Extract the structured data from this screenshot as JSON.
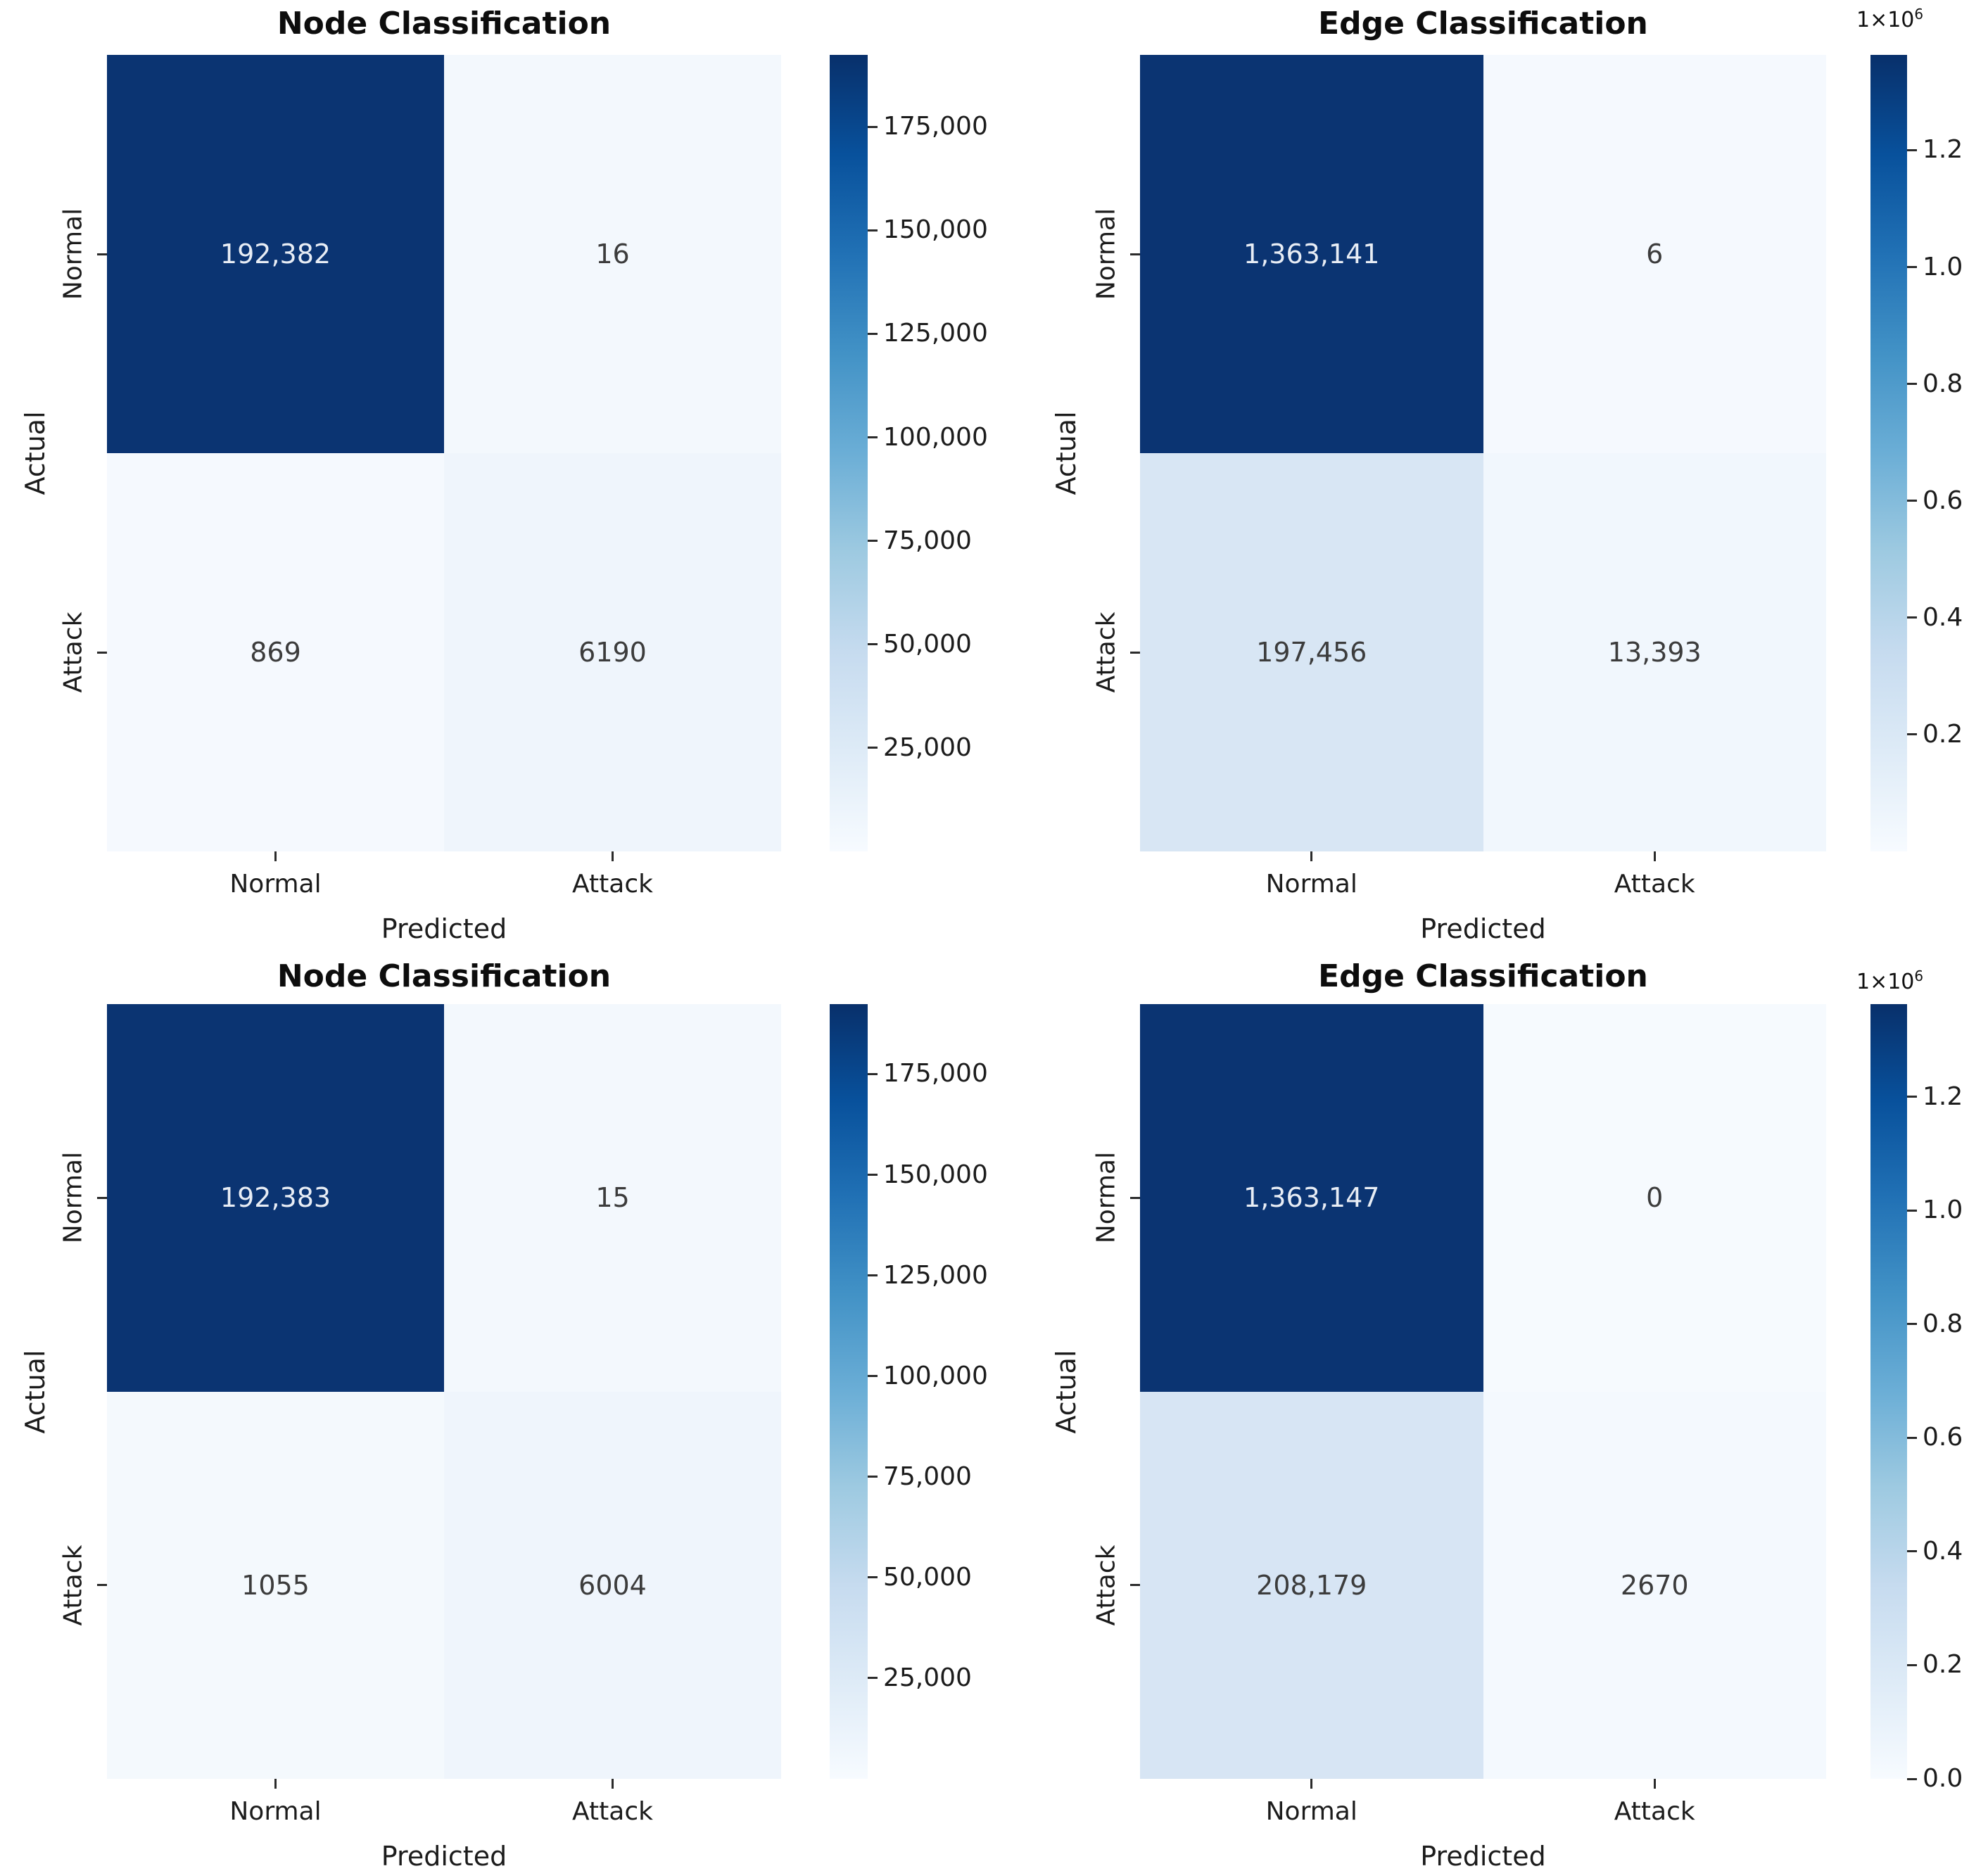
{
  "figure": {
    "background": "#ffffff",
    "heatmap_colormap": "Blues",
    "colormap_dark": "#0b3472",
    "colormap_light": "#f7fbff"
  },
  "chart_data": [
    {
      "type": "heatmap",
      "title": "Node Classification",
      "xlabel": "Predicted",
      "ylabel": "Actual",
      "x_categories": [
        "Normal",
        "Attack"
      ],
      "y_categories": [
        "Normal",
        "Attack"
      ],
      "values": [
        [
          192382,
          16
        ],
        [
          869,
          6190
        ]
      ],
      "cell_labels": [
        [
          "192,382",
          "16"
        ],
        [
          "869",
          "6190"
        ]
      ],
      "cell_colors": [
        [
          "#0b3472",
          "#f3f8fd"
        ],
        [
          "#f5f9fe",
          "#eff5fc"
        ]
      ],
      "cell_text_colors": [
        [
          "#e8edf5",
          "#3c3c3c"
        ],
        [
          "#3c3c3c",
          "#3c3c3c"
        ]
      ],
      "colorbar": {
        "vmin": 0,
        "vmax": 192382,
        "ticks": [
          {
            "value": 175000,
            "label": "175,000"
          },
          {
            "value": 150000,
            "label": "150,000"
          },
          {
            "value": 125000,
            "label": "125,000"
          },
          {
            "value": 100000,
            "label": "100,000"
          },
          {
            "value": 75000,
            "label": "75,000"
          },
          {
            "value": 50000,
            "label": "50,000"
          },
          {
            "value": 25000,
            "label": "25,000"
          }
        ],
        "offset_label": null
      }
    },
    {
      "type": "heatmap",
      "title": "Edge Classification",
      "xlabel": "Predicted",
      "ylabel": "Actual",
      "x_categories": [
        "Normal",
        "Attack"
      ],
      "y_categories": [
        "Normal",
        "Attack"
      ],
      "values": [
        [
          1363141,
          6
        ],
        [
          197456,
          13393
        ]
      ],
      "cell_labels": [
        [
          "1,363,141",
          "6"
        ],
        [
          "197,456",
          "13,393"
        ]
      ],
      "cell_colors": [
        [
          "#0b3472",
          "#f5f9fe"
        ],
        [
          "#d8e6f4",
          "#f1f7fd"
        ]
      ],
      "cell_text_colors": [
        [
          "#e8edf5",
          "#3c3c3c"
        ],
        [
          "#3c3c3c",
          "#3c3c3c"
        ]
      ],
      "colorbar": {
        "vmin": 0,
        "vmax": 1363141,
        "ticks": [
          {
            "value": 1200000,
            "label": "1.2"
          },
          {
            "value": 1000000,
            "label": "1.0"
          },
          {
            "value": 800000,
            "label": "0.8"
          },
          {
            "value": 600000,
            "label": "0.6"
          },
          {
            "value": 400000,
            "label": "0.4"
          },
          {
            "value": 200000,
            "label": "0.2"
          }
        ],
        "offset_label": {
          "base": "1×10",
          "exponent": "6"
        }
      }
    },
    {
      "type": "heatmap",
      "title": "Node Classification",
      "xlabel": "Predicted",
      "ylabel": "Actual",
      "x_categories": [
        "Normal",
        "Attack"
      ],
      "y_categories": [
        "Normal",
        "Attack"
      ],
      "values": [
        [
          192383,
          15
        ],
        [
          1055,
          6004
        ]
      ],
      "cell_labels": [
        [
          "192,383",
          "15"
        ],
        [
          "1055",
          "6004"
        ]
      ],
      "cell_colors": [
        [
          "#0b3472",
          "#f3f8fd"
        ],
        [
          "#f4f9fd",
          "#eff5fc"
        ]
      ],
      "cell_text_colors": [
        [
          "#e8edf5",
          "#3c3c3c"
        ],
        [
          "#3c3c3c",
          "#3c3c3c"
        ]
      ],
      "colorbar": {
        "vmin": 0,
        "vmax": 192383,
        "ticks": [
          {
            "value": 175000,
            "label": "175,000"
          },
          {
            "value": 150000,
            "label": "150,000"
          },
          {
            "value": 125000,
            "label": "125,000"
          },
          {
            "value": 100000,
            "label": "100,000"
          },
          {
            "value": 75000,
            "label": "75,000"
          },
          {
            "value": 50000,
            "label": "50,000"
          },
          {
            "value": 25000,
            "label": "25,000"
          }
        ],
        "offset_label": null
      }
    },
    {
      "type": "heatmap",
      "title": "Edge Classification",
      "xlabel": "Predicted",
      "ylabel": "Actual",
      "x_categories": [
        "Normal",
        "Attack"
      ],
      "y_categories": [
        "Normal",
        "Attack"
      ],
      "values": [
        [
          1363147,
          0
        ],
        [
          208179,
          2670
        ]
      ],
      "cell_labels": [
        [
          "1,363,147",
          "0"
        ],
        [
          "208,179",
          "2670"
        ]
      ],
      "cell_colors": [
        [
          "#0b3472",
          "#f6fafe"
        ],
        [
          "#d7e5f4",
          "#f4f9fe"
        ]
      ],
      "cell_text_colors": [
        [
          "#e8edf5",
          "#3c3c3c"
        ],
        [
          "#3c3c3c",
          "#3c3c3c"
        ]
      ],
      "colorbar": {
        "vmin": 0,
        "vmax": 1363147,
        "ticks": [
          {
            "value": 1200000,
            "label": "1.2"
          },
          {
            "value": 1000000,
            "label": "1.0"
          },
          {
            "value": 800000,
            "label": "0.8"
          },
          {
            "value": 600000,
            "label": "0.6"
          },
          {
            "value": 400000,
            "label": "0.4"
          },
          {
            "value": 200000,
            "label": "0.2"
          },
          {
            "value": 0,
            "label": "0.0"
          }
        ],
        "offset_label": {
          "base": "1×10",
          "exponent": "6"
        }
      }
    }
  ]
}
